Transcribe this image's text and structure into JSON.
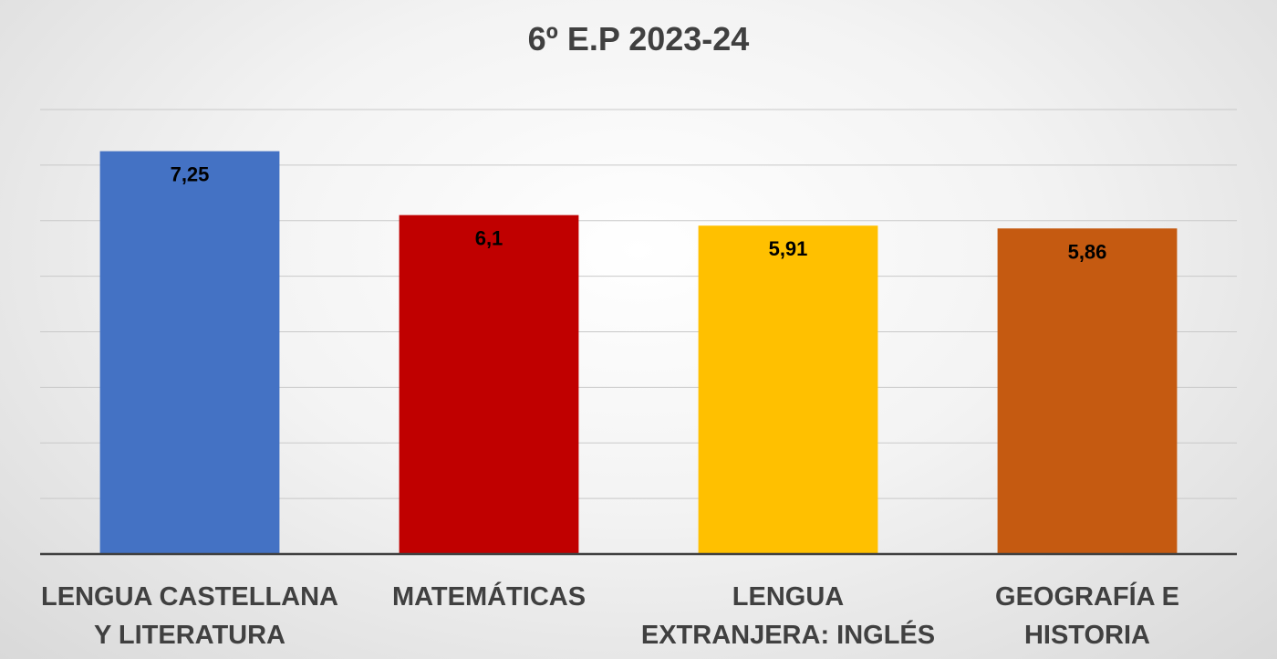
{
  "chart_data": {
    "type": "bar",
    "title": "6º E.P 2023-24",
    "categories": [
      [
        "LENGUA CASTELLANA",
        "Y LITERATURA"
      ],
      [
        "MATEMÁTICAS"
      ],
      [
        "LENGUA",
        "EXTRANJERA: INGLÉS"
      ],
      [
        "GEOGRAFÍA E",
        "HISTORIA"
      ]
    ],
    "values": [
      7.25,
      6.1,
      5.91,
      5.86
    ],
    "value_labels": [
      "7,25",
      "6,1",
      "5,91",
      "5,86"
    ],
    "colors": [
      "#4472c4",
      "#c00000",
      "#ffc000",
      "#c55a11"
    ],
    "ylim": [
      0,
      8
    ],
    "y_gridline_step": 1,
    "grid": true,
    "legend": "none",
    "xlabel": "",
    "ylabel": ""
  }
}
